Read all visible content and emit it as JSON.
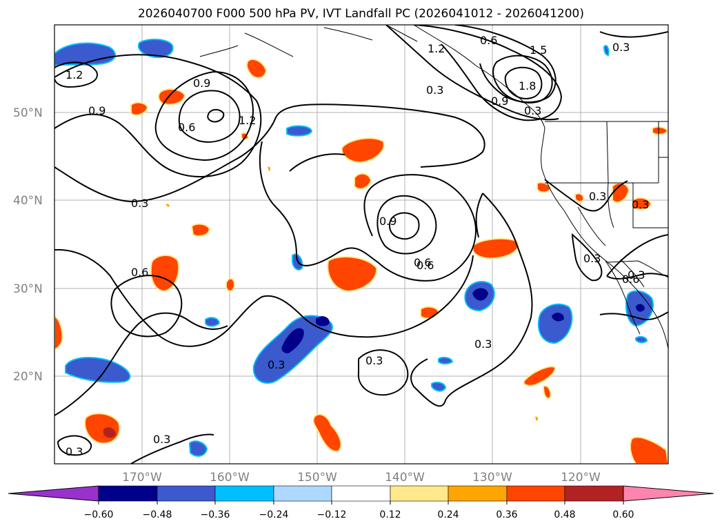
{
  "title": "2026040700 F000 500 hPa PV, IVT Landfall PC (2026041012 - 2026041200)",
  "map": {
    "lon_range": [
      -180,
      -110
    ],
    "lat_range": [
      10,
      60
    ],
    "lat_labels": [
      "20°N",
      "30°N",
      "40°N",
      "50°N"
    ],
    "lon_labels": [
      "170°W",
      "160°W",
      "150°W",
      "140°W",
      "130°W",
      "120°W"
    ],
    "contour_labels": [
      "1.2",
      "0.9",
      "0.6",
      "0.3",
      "0.9",
      "1.2",
      "0.6",
      "0.3",
      "0.3",
      "0.6",
      "0.3",
      "0.9",
      "0.6",
      "0.3",
      "0.3",
      "0.3",
      "0.3",
      "0.3",
      "0.6",
      "1.5",
      "1.8",
      "1.2",
      "0.9",
      "0.3",
      "0.3",
      "0.6",
      "0.3",
      "0.3"
    ]
  },
  "colorbar": {
    "ticks": [
      "−0.60",
      "−0.48",
      "−0.36",
      "−0.24",
      "−0.12",
      "0.12",
      "0.24",
      "0.36",
      "0.48",
      "0.60"
    ],
    "colors": [
      "#9932cc",
      "#00008b",
      "#3a5acd",
      "#00bfff",
      "#add8ff",
      "#ffffff",
      "#ffe98c",
      "#ffa500",
      "#ff4500",
      "#b22222",
      "#ff85b0"
    ]
  },
  "colors": {
    "neg_outer": "#00bfff",
    "neg_light": "#add8ff",
    "neg_mid": "#3a5acd",
    "neg_deep": "#00008b",
    "pos_light": "#ffe98c",
    "pos_mid": "#ffa500",
    "pos_strong": "#ff4500",
    "pos_deep": "#b22222"
  }
}
